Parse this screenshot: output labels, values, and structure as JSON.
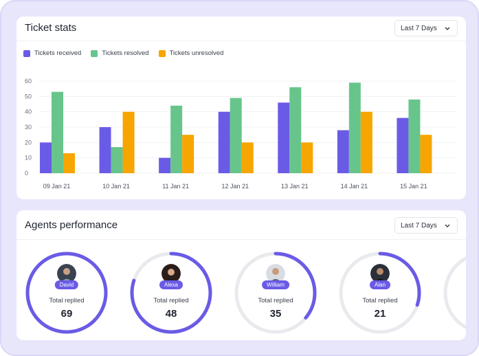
{
  "ticket_stats": {
    "title": "Ticket stats",
    "range": "Last 7 Days"
  },
  "agents_performance": {
    "title": "Agents performance",
    "range": "Last 7 Days",
    "total_label": "Total replied",
    "agents": [
      {
        "name": "David",
        "total": "69",
        "progress": 1.0
      },
      {
        "name": "Alexa",
        "total": "48",
        "progress": 0.8
      },
      {
        "name": "William",
        "total": "35",
        "progress": 0.36
      },
      {
        "name": "Alan",
        "total": "21",
        "progress": 0.3
      }
    ]
  },
  "colors": {
    "received": "#6a5be6",
    "resolved": "#67c58b",
    "unresolved": "#f7a500"
  },
  "chart_data": {
    "type": "bar",
    "categories": [
      "09 Jan 21",
      "10 Jan 21",
      "11 Jan 21",
      "12 Jan 21",
      "13 Jan 21",
      "14 Jan 21",
      "15 Jan 21"
    ],
    "series": [
      {
        "name": "Tickets received",
        "values": [
          20,
          30,
          10,
          40,
          46,
          28,
          36
        ]
      },
      {
        "name": "Tickets resolved",
        "values": [
          53,
          17,
          44,
          49,
          56,
          59,
          48
        ]
      },
      {
        "name": "Tickets unresolved",
        "values": [
          13,
          40,
          25,
          20,
          20,
          40,
          25
        ]
      }
    ],
    "yticks": [
      0,
      10,
      20,
      30,
      40,
      50,
      60
    ],
    "ylim": [
      0,
      60
    ],
    "grid": true,
    "legend": "top-left"
  }
}
